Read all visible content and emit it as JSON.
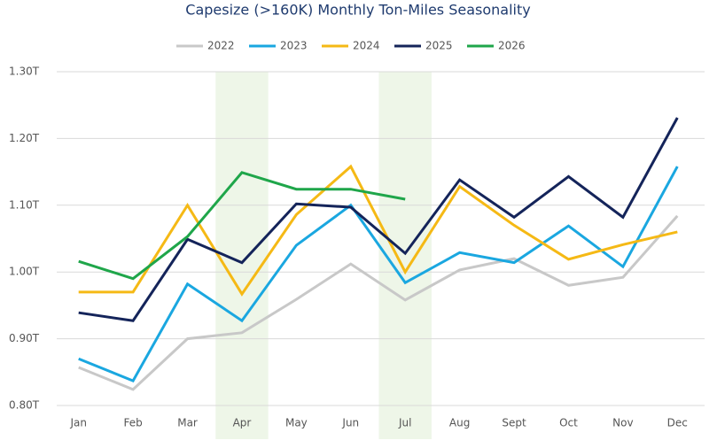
{
  "chart_data": {
    "type": "line",
    "title": "Capesize (>160K) Monthly Ton-Miles Seasonality",
    "categories": [
      "Jan",
      "Feb",
      "Mar",
      "Apr",
      "May",
      "Jun",
      "Jul",
      "Aug",
      "Sept",
      "Oct",
      "Nov",
      "Dec"
    ],
    "series": [
      {
        "name": "2022",
        "color": "#c8c8c8",
        "values": [
          0.857,
          0.824,
          0.9,
          0.909,
          0.959,
          1.012,
          0.958,
          1.003,
          1.02,
          0.98,
          0.992,
          1.084
        ]
      },
      {
        "name": "2023",
        "color": "#1aa7e0",
        "values": [
          0.87,
          0.837,
          0.982,
          0.927,
          1.04,
          1.1,
          0.984,
          1.029,
          1.014,
          1.069,
          1.008,
          1.158
        ]
      },
      {
        "name": "2024",
        "color": "#f5b915",
        "values": [
          0.97,
          0.97,
          1.1,
          0.967,
          1.086,
          1.158,
          1.0,
          1.128,
          1.07,
          1.019,
          1.041,
          1.06
        ]
      },
      {
        "name": "2025",
        "color": "#14245a",
        "values": [
          0.939,
          0.927,
          1.049,
          1.014,
          1.102,
          1.097,
          1.028,
          1.138,
          1.082,
          1.143,
          1.082,
          1.231
        ]
      },
      {
        "name": "2026",
        "color": "#1fa64a",
        "values": [
          1.016,
          0.99,
          1.053,
          1.149,
          1.124,
          1.124,
          1.109,
          null,
          null,
          null,
          null,
          null
        ]
      }
    ],
    "highlighted_categories": [
      "Apr",
      "Jul"
    ],
    "ylim": [
      0.8,
      1.3
    ],
    "yticks": [
      {
        "value": 0.8,
        "label": "0.80T"
      },
      {
        "value": 0.9,
        "label": "0.90T"
      },
      {
        "value": 1.0,
        "label": "1.00T"
      },
      {
        "value": 1.1,
        "label": "1.10T"
      },
      {
        "value": 1.2,
        "label": "1.20T"
      },
      {
        "value": 1.3,
        "label": "1.30T"
      }
    ],
    "grid": true,
    "legend": "top"
  }
}
